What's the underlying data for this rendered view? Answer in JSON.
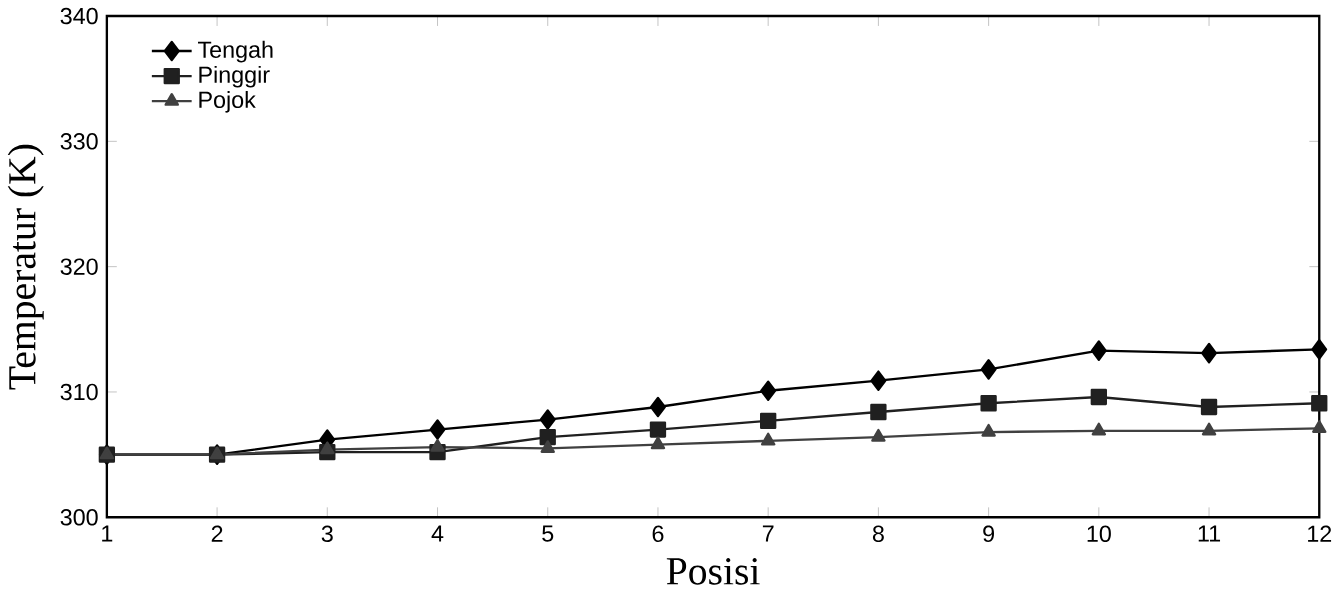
{
  "chart_data": {
    "type": "line",
    "xlabel": "Posisi",
    "ylabel": "Temperatur (K)",
    "x": [
      1,
      2,
      3,
      4,
      5,
      6,
      7,
      8,
      9,
      10,
      11,
      12
    ],
    "xlim": [
      1,
      12
    ],
    "xticks": [
      1,
      2,
      3,
      4,
      5,
      6,
      7,
      8,
      9,
      10,
      11,
      12
    ],
    "ylim": [
      300,
      340
    ],
    "yticks": [
      300,
      310,
      320,
      330,
      340
    ],
    "legend": "top left",
    "grid": false,
    "line_style": "solid",
    "series": [
      {
        "name": "Tengah",
        "color": "#000000",
        "marker": "diamond",
        "values": [
          305,
          305,
          306.2,
          307,
          307.8,
          308.8,
          310.1,
          310.9,
          311.8,
          313.3,
          313.1,
          313.4
        ]
      },
      {
        "name": "Pinggir",
        "color": "#202020",
        "marker": "square",
        "values": [
          305,
          305,
          305.2,
          305.2,
          306.4,
          307,
          307.7,
          308.4,
          309.1,
          309.6,
          308.8,
          309.1
        ]
      },
      {
        "name": "Pojok",
        "color": "#404040",
        "marker": "triangle",
        "values": [
          305,
          305,
          305.4,
          305.6,
          305.5,
          305.8,
          306.1,
          306.4,
          306.8,
          306.9,
          306.9,
          307.1
        ]
      }
    ]
  }
}
